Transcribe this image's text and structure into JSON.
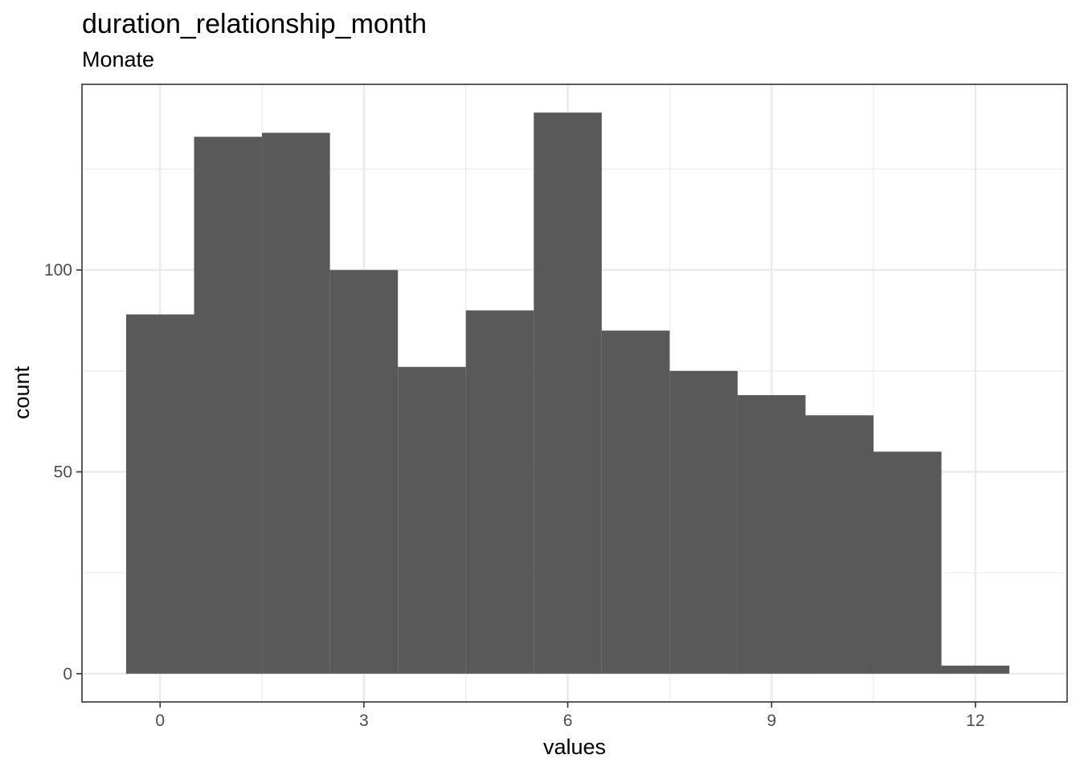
{
  "chart_data": {
    "type": "bar",
    "title": "duration_relationship_month",
    "subtitle": "Monate",
    "xlabel": "values",
    "ylabel": "count",
    "bins": [
      {
        "x": 0,
        "count": 89
      },
      {
        "x": 1,
        "count": 133
      },
      {
        "x": 2,
        "count": 134
      },
      {
        "x": 3,
        "count": 100
      },
      {
        "x": 4,
        "count": 76
      },
      {
        "x": 5,
        "count": 90
      },
      {
        "x": 6,
        "count": 139
      },
      {
        "x": 7,
        "count": 85
      },
      {
        "x": 8,
        "count": 75
      },
      {
        "x": 9,
        "count": 69
      },
      {
        "x": 10,
        "count": 64
      },
      {
        "x": 11,
        "count": 55
      },
      {
        "x": 12,
        "count": 2
      }
    ],
    "bin_width": 1,
    "xlim": [
      -1.15,
      13.35
    ],
    "ylim": [
      -7,
      146
    ],
    "x_ticks": [
      0,
      3,
      6,
      9,
      12
    ],
    "x_tick_labels": [
      "0",
      "3",
      "6",
      "9",
      "12"
    ],
    "y_ticks": [
      0,
      50,
      100
    ],
    "y_tick_labels": [
      "0",
      "50",
      "100"
    ],
    "x_minor_ticks": [
      1.5,
      4.5,
      7.5,
      10.5
    ],
    "y_minor_ticks": [
      25,
      75,
      125
    ],
    "grid": true,
    "bar_color": "#595959",
    "grid_color": "#ebebeb",
    "panel_border_color": "#333333"
  }
}
